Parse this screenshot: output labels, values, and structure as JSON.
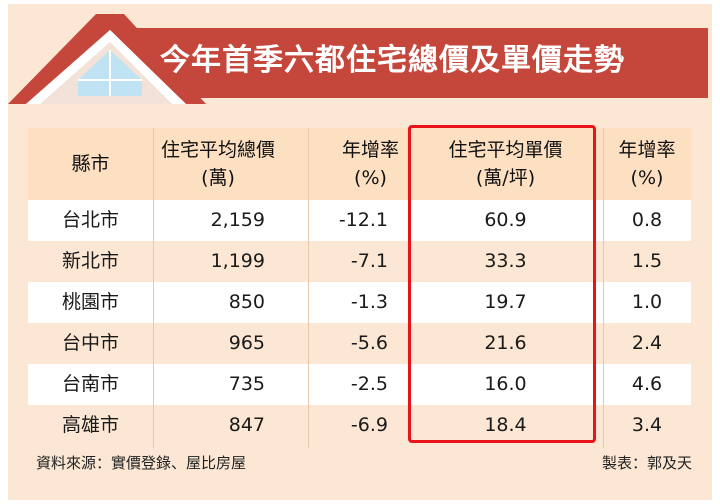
{
  "title": "今年首季六都住宅總價及單價走勢",
  "colors": {
    "roof": "#c5473c",
    "banner": "#c5473c",
    "highlight_border": "#e8141a",
    "header_bg": "#fde0c2",
    "zebra": "#fbe7d3"
  },
  "table": {
    "headers": [
      {
        "line1": "縣市",
        "line2": ""
      },
      {
        "line1": "住宅平均總價",
        "line2": "(萬)"
      },
      {
        "line1": "年增率",
        "line2": "(%)"
      },
      {
        "line1": "住宅平均單價",
        "line2": "(萬/坪)"
      },
      {
        "line1": "年增率",
        "line2": "(%)"
      }
    ],
    "rows": [
      {
        "city": "台北市",
        "total_price": "2,159",
        "total_yoy": "-12.1",
        "unit_price": "60.9",
        "unit_yoy": "0.8"
      },
      {
        "city": "新北市",
        "total_price": "1,199",
        "total_yoy": "-7.1",
        "unit_price": "33.3",
        "unit_yoy": "1.5"
      },
      {
        "city": "桃園市",
        "total_price": "850",
        "total_yoy": "-1.3",
        "unit_price": "19.7",
        "unit_yoy": "1.0"
      },
      {
        "city": "台中市",
        "total_price": "965",
        "total_yoy": "-5.6",
        "unit_price": "21.6",
        "unit_yoy": "2.4"
      },
      {
        "city": "台南市",
        "total_price": "735",
        "total_yoy": "-2.5",
        "unit_price": "16.0",
        "unit_yoy": "4.6"
      },
      {
        "city": "高雄市",
        "total_price": "847",
        "total_yoy": "-6.9",
        "unit_price": "18.4",
        "unit_yoy": "3.4"
      }
    ]
  },
  "footer": {
    "source": "資料來源：實價登錄、屋比房屋",
    "credit": "製表：郭及天"
  }
}
